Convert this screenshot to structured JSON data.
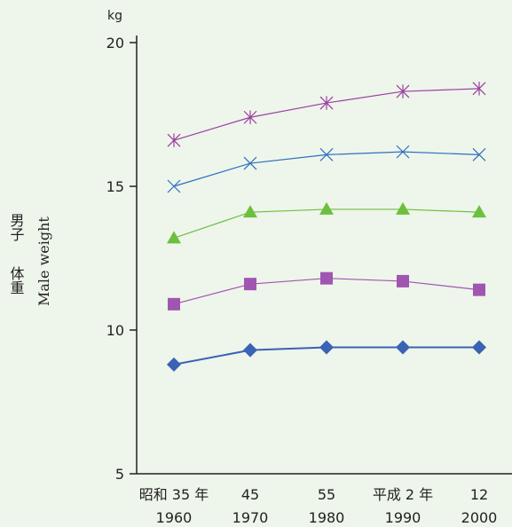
{
  "chart_data": {
    "type": "line",
    "unit": "kg",
    "ylabel_jp_1": "男子",
    "ylabel_jp_2": "体重",
    "ylabel_en": "Male weight",
    "ylim": [
      5,
      20
    ],
    "yticks": [
      "5",
      "10",
      "15",
      "20"
    ],
    "categories": [
      {
        "era": "昭和 35 年",
        "year": "1960"
      },
      {
        "era": "45",
        "year": "1970"
      },
      {
        "era": "55",
        "year": "1980"
      },
      {
        "era": "平成 2 年",
        "year": "1990"
      },
      {
        "era": "12",
        "year": "2000"
      }
    ],
    "series": [
      {
        "marker": "star",
        "color": "#9b3fa0",
        "values": [
          16.6,
          17.4,
          17.9,
          18.3,
          18.4
        ]
      },
      {
        "marker": "x",
        "color": "#2f6fc0",
        "values": [
          15.0,
          15.8,
          16.1,
          16.2,
          16.1
        ]
      },
      {
        "marker": "triangle",
        "color": "#6cbf3f",
        "values": [
          13.2,
          14.1,
          14.2,
          14.2,
          14.1
        ]
      },
      {
        "marker": "square",
        "color": "#a056b0",
        "values": [
          10.9,
          11.6,
          11.8,
          11.7,
          11.4
        ]
      },
      {
        "marker": "diamond",
        "color": "#3a62b5",
        "values": [
          8.8,
          9.3,
          9.4,
          9.4,
          9.4
        ]
      }
    ],
    "axis_color": "#222222"
  }
}
